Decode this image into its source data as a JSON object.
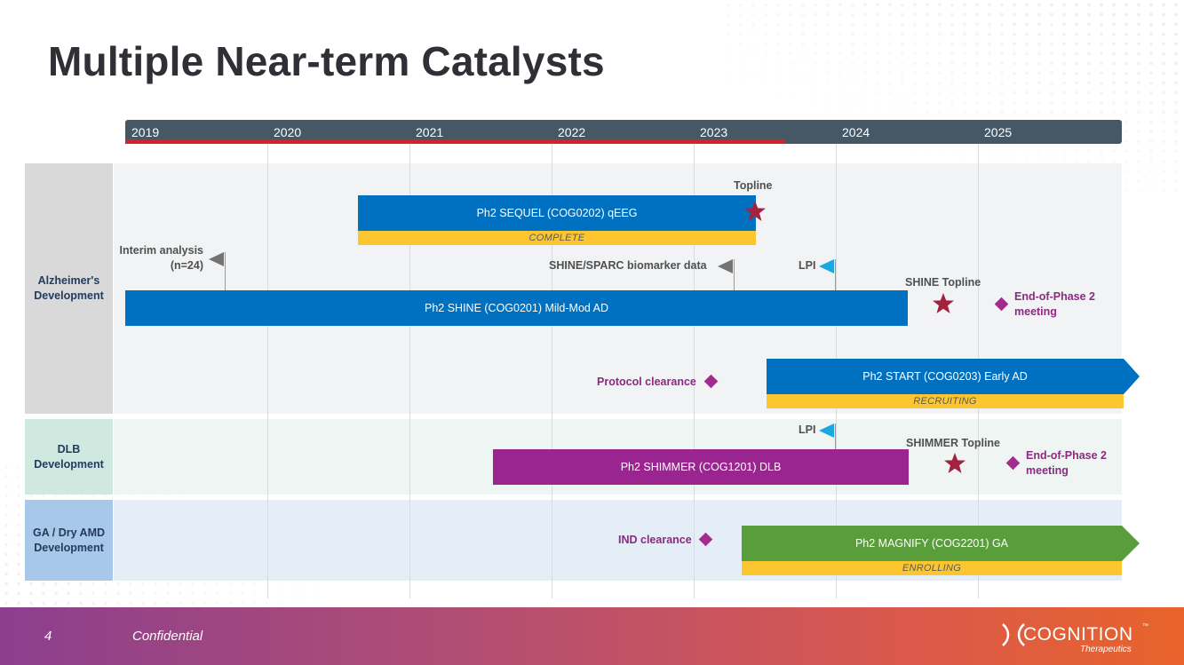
{
  "page": {
    "title": "Multiple Near-term Catalysts"
  },
  "timeline": {
    "years": [
      "2019",
      "2020",
      "2021",
      "2022",
      "2023",
      "2024",
      "2025"
    ]
  },
  "rows": {
    "alzheimers": {
      "label_line1": "Alzheimer's",
      "label_line2": "Development",
      "color": "#d9d9d9"
    },
    "dlb": {
      "label_line1": "DLB",
      "label_line2": "Development",
      "color": "#cfe9e1"
    },
    "ga": {
      "label_line1": "GA / Dry AMD",
      "label_line2": "Development",
      "color": "#a7c8e8"
    }
  },
  "programs": {
    "sequel": {
      "label": "Ph2 SEQUEL (COG0202) qEEG",
      "status": "COMPLETE",
      "color": "#0070c0"
    },
    "shine": {
      "label": "Ph2 SHINE (COG0201) Mild-Mod AD",
      "color": "#0070c0"
    },
    "start": {
      "label": "Ph2 START (COG0203) Early AD",
      "status": "RECRUITING",
      "color": "#0070c0"
    },
    "shimmer": {
      "label": "Ph2 SHIMMER (COG1201) DLB",
      "color": "#9b2590"
    },
    "magnify": {
      "label": "Ph2 MAGNIFY (COG2201) GA",
      "status": "ENROLLING",
      "color": "#5a9e3b"
    }
  },
  "milestones": {
    "topline": "Topline",
    "interim_line1": "Interim analysis",
    "interim_line2": "(n=24)",
    "biomarker": "SHINE/SPARC biomarker data",
    "lpi_ad": "LPI",
    "shine_topline": "SHINE Topline",
    "eop2_ad_line1": "End-of-Phase 2",
    "eop2_ad_line2": "meeting",
    "protocol_clearance": "Protocol clearance",
    "lpi_dlb": "LPI",
    "shimmer_topline": "SHIMMER Topline",
    "eop2_dlb_line1": "End-of-Phase 2",
    "eop2_dlb_line2": "meeting",
    "ind_clearance": "IND clearance"
  },
  "colors": {
    "star": "#a3223f",
    "diamond": "#a02d8c",
    "status_bar": "#fbc630",
    "today_line": "#d81f2a",
    "year_bar": "#465766"
  },
  "footer": {
    "page_number": "4",
    "confidential": "Confidential",
    "logo_text": "COGNITION",
    "logo_tm": "™",
    "logo_sub": "Therapeutics"
  }
}
